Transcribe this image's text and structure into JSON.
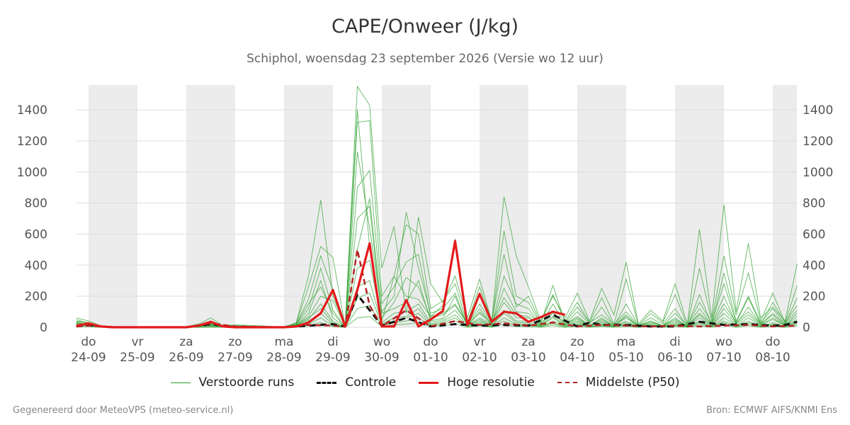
{
  "page": {
    "title": "CAPE/Onweer (J/kg)",
    "subtitle": "Schiphol, woensdag 23 september 2026 (Versie wo 12 uur)",
    "footer_left": "Gegenereerd door MeteoVPS (meteo-service.nl)",
    "footer_right": "Bron: ECMWF AIFS/KNMI Ens"
  },
  "legend": [
    {
      "label": "Verstoorde runs",
      "color": "#2ca02c",
      "style": "thin-solid"
    },
    {
      "label": "Controle",
      "color": "#111111",
      "style": "dashed"
    },
    {
      "label": "Hoge resolutie",
      "color": "#e31a1c",
      "style": "thick-solid"
    },
    {
      "label": "Middelste (P50)",
      "color": "#b22222",
      "style": "dashed"
    }
  ],
  "chart_data": {
    "type": "line",
    "title": "CAPE/Onweer (J/kg)",
    "subtitle": "Schiphol, woensdag 23 september 2026 (Versie wo 12 uur)",
    "x_unit": "day index from 24-09",
    "xlim": [
      -0.25,
      14.5
    ],
    "ylim": [
      0,
      1560
    ],
    "yticks": [
      0,
      200,
      400,
      600,
      800,
      1000,
      1200,
      1400
    ],
    "grid": true,
    "legend_position": "bottom",
    "x_ticks": [
      {
        "day": "do",
        "date": "24-09"
      },
      {
        "day": "vr",
        "date": "25-09"
      },
      {
        "day": "za",
        "date": "26-09"
      },
      {
        "day": "zo",
        "date": "27-09"
      },
      {
        "day": "ma",
        "date": "28-09"
      },
      {
        "day": "di",
        "date": "29-09"
      },
      {
        "day": "wo",
        "date": "30-09"
      },
      {
        "day": "do",
        "date": "01-10"
      },
      {
        "day": "vr",
        "date": "02-10"
      },
      {
        "day": "za",
        "date": "03-10"
      },
      {
        "day": "zo",
        "date": "04-10"
      },
      {
        "day": "ma",
        "date": "05-10"
      },
      {
        "day": "di",
        "date": "06-10"
      },
      {
        "day": "wo",
        "date": "07-10"
      },
      {
        "day": "do",
        "date": "08-10"
      }
    ],
    "shaded_days": [
      0,
      2,
      4,
      6,
      8,
      10,
      12,
      14
    ],
    "colors": {
      "perturbed": "#2ca02c",
      "control": "#111111",
      "hires": "#e31a1c",
      "median": "#b22222",
      "shade": "#ececec",
      "grid": "#dddddd"
    },
    "series": [
      {
        "name": "Hoge resolutie",
        "role": "hires",
        "x": [
          -0.25,
          0,
          0.25,
          0.5,
          1,
          1.5,
          2,
          2.25,
          2.5,
          2.75,
          3,
          3.5,
          4,
          4.25,
          4.5,
          4.75,
          5,
          5.25,
          5.5,
          5.75,
          6,
          6.25,
          6.5,
          6.75,
          7,
          7.25,
          7.5,
          7.75,
          8,
          8.25,
          8.5,
          8.75,
          9,
          9.25,
          9.5,
          9.75
        ],
        "y": [
          10,
          25,
          5,
          0,
          0,
          0,
          0,
          10,
          35,
          5,
          0,
          0,
          0,
          5,
          30,
          90,
          240,
          5,
          240,
          540,
          5,
          5,
          175,
          5,
          50,
          105,
          555,
          15,
          215,
          35,
          100,
          90,
          35,
          65,
          100,
          80
        ]
      },
      {
        "name": "Controle",
        "role": "control",
        "x": [
          -0.25,
          0,
          0.25,
          0.5,
          1,
          2,
          2.5,
          3,
          4,
          4.5,
          5,
          5.25,
          5.5,
          5.75,
          6,
          6.5,
          7,
          7.5,
          8,
          8.5,
          9,
          9.5,
          10,
          10.25,
          10.5,
          11,
          11.5,
          12,
          12.5,
          13,
          13.5,
          14,
          14.25,
          14.5
        ],
        "y": [
          5,
          15,
          5,
          0,
          0,
          0,
          20,
          0,
          0,
          10,
          20,
          5,
          210,
          110,
          10,
          60,
          5,
          20,
          10,
          15,
          10,
          80,
          5,
          30,
          15,
          15,
          5,
          5,
          35,
          15,
          20,
          10,
          15,
          35
        ]
      },
      {
        "name": "Middelste (P50)",
        "role": "median",
        "x": [
          -0.25,
          0,
          0.25,
          0.5,
          1,
          2,
          2.5,
          3,
          4,
          4.5,
          5,
          5.25,
          5.5,
          5.75,
          6,
          6.5,
          7,
          7.5,
          8,
          8.5,
          9,
          9.5,
          10,
          10.5,
          11,
          11.5,
          12,
          12.5,
          13,
          13.5,
          14,
          14.5
        ],
        "y": [
          5,
          10,
          5,
          0,
          0,
          0,
          25,
          5,
          0,
          15,
          10,
          5,
          500,
          140,
          5,
          110,
          5,
          40,
          15,
          25,
          10,
          30,
          5,
          15,
          10,
          5,
          10,
          5,
          10,
          15,
          5,
          10
        ]
      }
    ],
    "perturbed_x": [
      -0.25,
      0,
      0.25,
      0.5,
      1,
      1.5,
      2,
      2.25,
      2.5,
      2.75,
      3,
      3.5,
      4,
      4.25,
      4.5,
      4.75,
      5,
      5.25,
      5.5,
      5.75,
      6,
      6.25,
      6.5,
      6.75,
      7,
      7.25,
      7.5,
      7.75,
      8,
      8.25,
      8.5,
      8.75,
      9,
      9.25,
      9.5,
      9.75,
      10,
      10.25,
      10.5,
      10.75,
      11,
      11.25,
      11.5,
      11.75,
      12,
      12.25,
      12.5,
      12.75,
      13,
      13.25,
      13.5,
      13.75,
      14,
      14.25,
      14.5
    ],
    "perturbed_runs": [
      [
        60,
        40,
        10,
        5,
        0,
        0,
        5,
        20,
        60,
        10,
        15,
        10,
        0,
        30,
        330,
        820,
        200,
        5,
        1550,
        1430,
        380,
        650,
        90,
        710,
        280,
        160,
        330,
        60,
        310,
        40,
        840,
        460,
        260,
        40,
        200,
        60,
        220,
        40,
        250,
        80,
        420,
        20,
        110,
        40,
        280,
        20,
        630,
        60,
        790,
        100,
        540,
        60,
        130,
        40,
        410
      ],
      [
        40,
        30,
        5,
        0,
        0,
        0,
        0,
        10,
        30,
        5,
        10,
        5,
        0,
        20,
        180,
        460,
        240,
        10,
        1320,
        1330,
        200,
        330,
        660,
        600,
        120,
        170,
        280,
        20,
        150,
        30,
        620,
        200,
        160,
        20,
        270,
        30,
        130,
        30,
        190,
        20,
        310,
        10,
        90,
        30,
        210,
        10,
        380,
        40,
        460,
        80,
        350,
        40,
        220,
        30,
        270
      ],
      [
        30,
        20,
        5,
        0,
        0,
        0,
        0,
        5,
        20,
        5,
        5,
        5,
        0,
        15,
        120,
        380,
        110,
        0,
        1130,
        640,
        100,
        200,
        740,
        380,
        90,
        120,
        220,
        10,
        90,
        20,
        330,
        150,
        120,
        10,
        150,
        20,
        100,
        20,
        130,
        10,
        150,
        10,
        60,
        20,
        120,
        5,
        210,
        20,
        350,
        40,
        200,
        30,
        120,
        20,
        190
      ],
      [
        50,
        25,
        5,
        0,
        0,
        0,
        5,
        10,
        40,
        10,
        10,
        5,
        5,
        25,
        260,
        520,
        450,
        5,
        900,
        1010,
        150,
        260,
        420,
        470,
        70,
        90,
        150,
        30,
        260,
        40,
        470,
        130,
        200,
        30,
        210,
        40,
        160,
        30,
        80,
        20,
        100,
        10,
        40,
        10,
        90,
        10,
        160,
        30,
        280,
        30,
        190,
        20,
        160,
        30,
        140
      ],
      [
        20,
        15,
        5,
        0,
        0,
        0,
        0,
        5,
        15,
        5,
        5,
        5,
        0,
        10,
        90,
        300,
        60,
        5,
        700,
        780,
        60,
        160,
        320,
        260,
        60,
        80,
        140,
        20,
        120,
        20,
        250,
        100,
        90,
        20,
        100,
        20,
        70,
        10,
        60,
        10,
        80,
        5,
        30,
        10,
        60,
        5,
        120,
        20,
        200,
        20,
        130,
        20,
        90,
        20,
        110
      ],
      [
        35,
        30,
        5,
        0,
        0,
        0,
        0,
        10,
        25,
        5,
        10,
        5,
        0,
        20,
        150,
        260,
        90,
        5,
        1400,
        520,
        40,
        330,
        200,
        180,
        70,
        140,
        570,
        15,
        100,
        30,
        190,
        80,
        70,
        10,
        90,
        20,
        60,
        10,
        50,
        10,
        70,
        5,
        40,
        10,
        50,
        5,
        90,
        20,
        150,
        30,
        100,
        20,
        80,
        10,
        90
      ],
      [
        25,
        20,
        5,
        0,
        0,
        0,
        0,
        5,
        20,
        5,
        5,
        5,
        0,
        15,
        70,
        200,
        170,
        5,
        500,
        830,
        90,
        120,
        160,
        300,
        40,
        60,
        200,
        10,
        60,
        20,
        160,
        60,
        60,
        10,
        70,
        15,
        50,
        10,
        40,
        10,
        60,
        5,
        30,
        10,
        40,
        5,
        80,
        10,
        120,
        20,
        80,
        15,
        60,
        10,
        70
      ],
      [
        15,
        10,
        5,
        0,
        0,
        0,
        0,
        5,
        10,
        5,
        5,
        5,
        0,
        10,
        50,
        150,
        40,
        0,
        380,
        430,
        30,
        90,
        100,
        150,
        30,
        50,
        110,
        10,
        50,
        10,
        110,
        40,
        40,
        10,
        60,
        10,
        40,
        10,
        30,
        5,
        40,
        5,
        20,
        5,
        30,
        5,
        60,
        10,
        90,
        10,
        60,
        10,
        50,
        10,
        50
      ],
      [
        30,
        15,
        5,
        0,
        0,
        0,
        0,
        5,
        15,
        5,
        5,
        5,
        0,
        10,
        60,
        120,
        30,
        0,
        260,
        300,
        20,
        60,
        70,
        120,
        20,
        40,
        80,
        5,
        40,
        10,
        90,
        30,
        30,
        5,
        40,
        10,
        30,
        5,
        20,
        5,
        30,
        5,
        15,
        5,
        20,
        5,
        40,
        5,
        60,
        10,
        40,
        5,
        30,
        5,
        40
      ],
      [
        20,
        10,
        5,
        0,
        0,
        0,
        0,
        5,
        10,
        5,
        5,
        5,
        0,
        5,
        40,
        90,
        20,
        0,
        190,
        220,
        15,
        40,
        60,
        90,
        15,
        30,
        60,
        5,
        30,
        5,
        60,
        20,
        20,
        5,
        30,
        5,
        20,
        5,
        15,
        5,
        20,
        5,
        10,
        5,
        15,
        5,
        30,
        5,
        40,
        5,
        30,
        5,
        20,
        5,
        30
      ],
      [
        10,
        5,
        0,
        0,
        0,
        0,
        0,
        0,
        5,
        0,
        0,
        0,
        0,
        5,
        20,
        60,
        10,
        0,
        120,
        140,
        10,
        30,
        40,
        60,
        10,
        20,
        40,
        5,
        20,
        5,
        40,
        10,
        10,
        5,
        20,
        5,
        15,
        5,
        10,
        5,
        15,
        0,
        10,
        5,
        10,
        5,
        20,
        5,
        30,
        5,
        20,
        5,
        15,
        5,
        20
      ],
      [
        5,
        5,
        0,
        0,
        0,
        0,
        0,
        0,
        0,
        0,
        0,
        0,
        0,
        0,
        10,
        30,
        5,
        0,
        60,
        70,
        5,
        15,
        20,
        30,
        5,
        10,
        20,
        0,
        10,
        0,
        20,
        5,
        5,
        0,
        10,
        0,
        5,
        0,
        5,
        0,
        5,
        0,
        5,
        0,
        5,
        0,
        10,
        0,
        15,
        0,
        10,
        0,
        5,
        0,
        10
      ]
    ]
  }
}
